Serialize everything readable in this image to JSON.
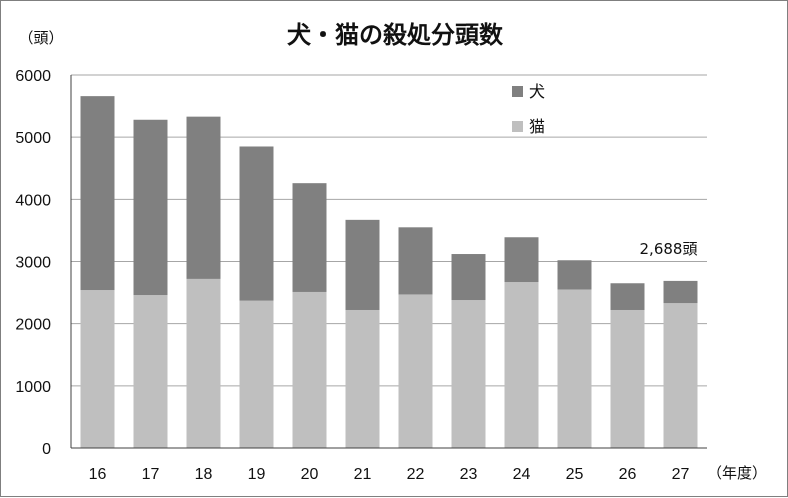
{
  "chart_data": {
    "type": "bar",
    "stacked": true,
    "title": "犬・猫の殺処分頭数",
    "ylabel": "（頭）",
    "xlabel": "（年度）",
    "categories": [
      "16",
      "17",
      "18",
      "19",
      "20",
      "21",
      "22",
      "23",
      "24",
      "25",
      "26",
      "27"
    ],
    "series": [
      {
        "name": "猫",
        "color": "#bfbfbf",
        "values": [
          2540,
          2460,
          2720,
          2370,
          2510,
          2220,
          2470,
          2380,
          2670,
          2550,
          2220,
          2330
        ]
      },
      {
        "name": "犬",
        "color": "#808080",
        "values": [
          3120,
          2820,
          2610,
          2480,
          1750,
          1450,
          1080,
          740,
          720,
          470,
          430,
          358
        ]
      }
    ],
    "ylim": [
      0,
      6000
    ],
    "yticks": [
      0,
      1000,
      2000,
      3000,
      4000,
      5000,
      6000
    ],
    "grid": true,
    "legend": {
      "position": "top-right",
      "order": [
        "犬",
        "猫"
      ]
    },
    "annotations": [
      {
        "category": "27",
        "text": "2,688頭"
      }
    ]
  }
}
